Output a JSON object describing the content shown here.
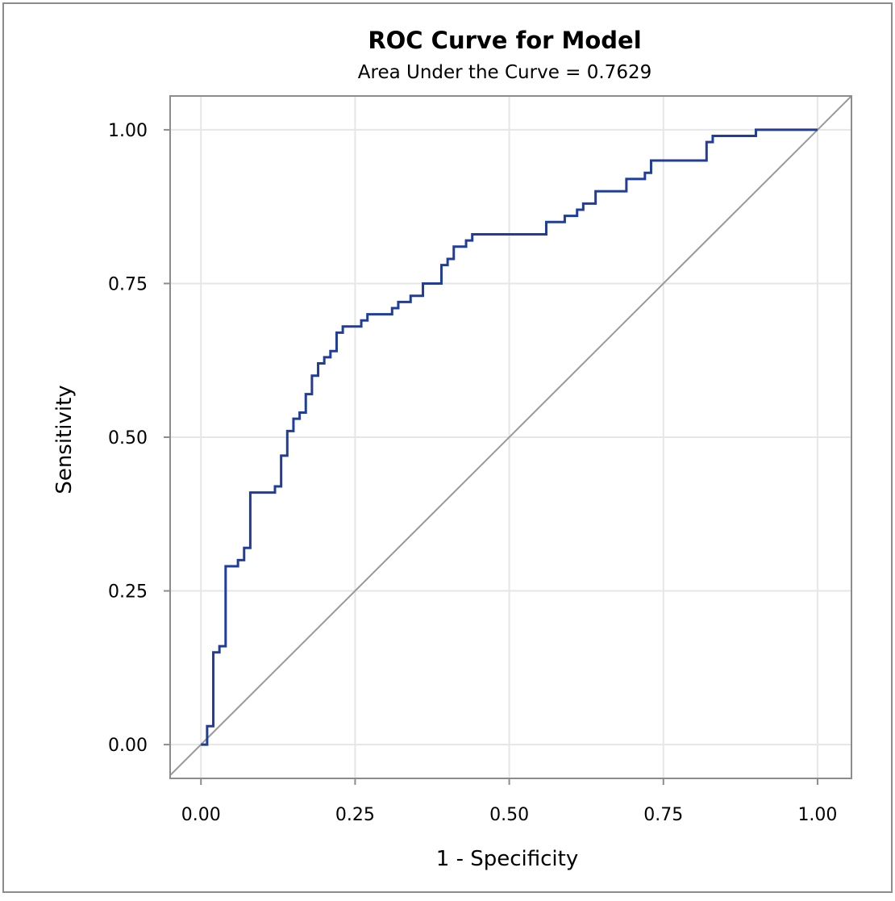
{
  "chart_data": {
    "type": "line",
    "title": "ROC Curve for Model",
    "subtitle": "Area Under the Curve = 0.7629",
    "xlabel": "1 - Specificity",
    "ylabel": "Sensitivity",
    "xlim": [
      -0.05,
      1.055
    ],
    "ylim": [
      -0.055,
      1.055
    ],
    "xticks": [
      0.0,
      0.25,
      0.5,
      0.75,
      1.0
    ],
    "xtick_labels": [
      "0.00",
      "0.25",
      "0.50",
      "0.75",
      "1.00"
    ],
    "yticks": [
      0.0,
      0.25,
      0.5,
      0.75,
      1.0
    ],
    "ytick_labels": [
      "0.00",
      "0.25",
      "0.50",
      "0.75",
      "1.00"
    ],
    "grid": true,
    "legend": "none",
    "colors": {
      "roc": "#1f3d99",
      "reference": "#999999",
      "grid": "#e6e6e6",
      "frame": "#8c8c8c"
    },
    "reference_line": {
      "x": [
        0,
        1
      ],
      "y": [
        0,
        1
      ]
    },
    "series": [
      {
        "step": true,
        "x": [
          0.0,
          0.01,
          0.02,
          0.03,
          0.04,
          0.06,
          0.07,
          0.08,
          0.12,
          0.13,
          0.14,
          0.15,
          0.16,
          0.17,
          0.18,
          0.19,
          0.2,
          0.21,
          0.22,
          0.23,
          0.26,
          0.27,
          0.31,
          0.32,
          0.34,
          0.36,
          0.39,
          0.4,
          0.41,
          0.43,
          0.44,
          0.56,
          0.59,
          0.61,
          0.62,
          0.64,
          0.69,
          0.72,
          0.73,
          0.82,
          0.83,
          0.9,
          1.0
        ],
        "y": [
          0.0,
          0.03,
          0.15,
          0.16,
          0.29,
          0.3,
          0.32,
          0.41,
          0.42,
          0.47,
          0.51,
          0.53,
          0.54,
          0.57,
          0.6,
          0.62,
          0.63,
          0.64,
          0.67,
          0.68,
          0.69,
          0.7,
          0.71,
          0.72,
          0.73,
          0.75,
          0.78,
          0.79,
          0.81,
          0.82,
          0.83,
          0.85,
          0.86,
          0.87,
          0.88,
          0.9,
          0.92,
          0.93,
          0.95,
          0.98,
          0.99,
          1.0,
          1.0
        ]
      }
    ]
  }
}
